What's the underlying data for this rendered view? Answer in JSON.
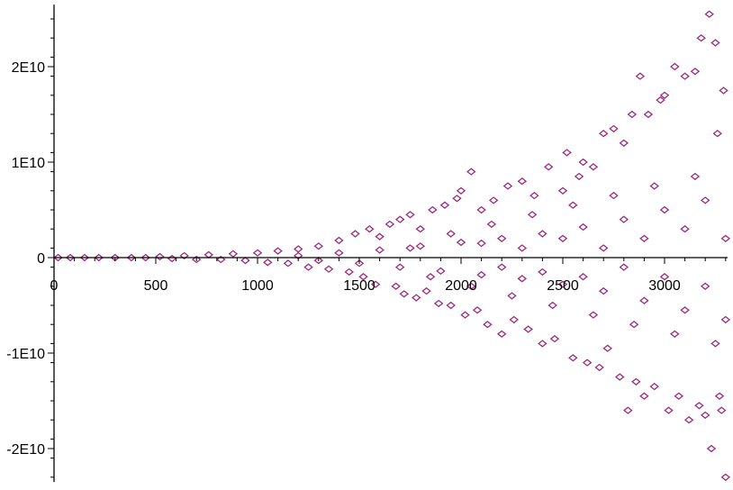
{
  "chart_data": {
    "type": "scatter",
    "title": "",
    "xlabel": "",
    "ylabel": "",
    "xlim": [
      0,
      3320
    ],
    "ylim": [
      -23500000000.0,
      26500000000.0
    ],
    "x_ticks": [
      0,
      500,
      1000,
      1500,
      2000,
      2500,
      3000
    ],
    "x_tick_labels": [
      "0",
      "500",
      "1000",
      "1500",
      "2000",
      "2500",
      "3000"
    ],
    "y_ticks": [
      -20000000000.0,
      -10000000000.0,
      0,
      10000000000.0,
      20000000000.0
    ],
    "y_tick_labels": [
      "-2E10",
      "-1E10",
      "0",
      "1E10",
      "2E10"
    ],
    "marker": "diamond",
    "marker_color": "#9b2d7a",
    "series": [
      {
        "values": [
          [
            20,
            0
          ],
          [
            80,
            0
          ],
          [
            150,
            0
          ],
          [
            220,
            0
          ],
          [
            300,
            0
          ],
          [
            380,
            0
          ],
          [
            450,
            0
          ],
          [
            520,
            100000000.0
          ],
          [
            580,
            -100000000.0
          ],
          [
            640,
            200000000.0
          ],
          [
            700,
            -200000000.0
          ],
          [
            760,
            300000000.0
          ],
          [
            820,
            -200000000.0
          ],
          [
            880,
            400000000.0
          ],
          [
            940,
            -300000000.0
          ],
          [
            1000,
            500000000.0
          ],
          [
            1050,
            -500000000.0
          ],
          [
            1100,
            700000000.0
          ],
          [
            1150,
            -600000000.0
          ],
          [
            1200,
            900000000.0
          ],
          [
            1250,
            -1000000000.0
          ],
          [
            1300,
            1200000000.0
          ],
          [
            1350,
            -1200000000.0
          ],
          [
            1400,
            1800000000.0
          ],
          [
            1450,
            -1500000000.0
          ],
          [
            1480,
            2500000000.0
          ],
          [
            1520,
            -2000000000.0
          ],
          [
            1550,
            3000000000.0
          ],
          [
            1580,
            -2800000000.0
          ],
          [
            1600,
            2200000000.0
          ],
          [
            1650,
            3500000000.0
          ],
          [
            1680,
            -3000000000.0
          ],
          [
            1700,
            4000000000.0
          ],
          [
            1720,
            -3800000000.0
          ],
          [
            1750,
            4500000000.0
          ],
          [
            1780,
            -4200000000.0
          ],
          [
            1800,
            3000000000.0
          ],
          [
            1830,
            -3500000000.0
          ],
          [
            1860,
            5000000000.0
          ],
          [
            1890,
            -4800000000.0
          ],
          [
            1920,
            5500000000.0
          ],
          [
            1950,
            -5000000000.0
          ],
          [
            1980,
            6200000000.0
          ],
          [
            2000,
            7000000000.0
          ],
          [
            2020,
            -6000000000.0
          ],
          [
            2050,
            9000000000.0
          ],
          [
            2080,
            -5500000000.0
          ],
          [
            2100,
            5000000000.0
          ],
          [
            2130,
            -7000000000.0
          ],
          [
            2160,
            6000000000.0
          ],
          [
            2200,
            -8000000000.0
          ],
          [
            2230,
            7500000000.0
          ],
          [
            2260,
            -6500000000.0
          ],
          [
            2300,
            8000000000.0
          ],
          [
            2330,
            -7500000000.0
          ],
          [
            2360,
            6500000000.0
          ],
          [
            2400,
            -9000000000.0
          ],
          [
            2430,
            9500000000.0
          ],
          [
            2460,
            -8500000000.0
          ],
          [
            2500,
            7000000000.0
          ],
          [
            2520,
            11000000000.0
          ],
          [
            2550,
            -10500000000.0
          ],
          [
            2580,
            8500000000.0
          ],
          [
            2600,
            10000000000.0
          ],
          [
            2620,
            -11000000000.0
          ],
          [
            2650,
            9500000000.0
          ],
          [
            2680,
            -11500000000.0
          ],
          [
            2700,
            13000000000.0
          ],
          [
            2720,
            -9500000000.0
          ],
          [
            2750,
            13500000000.0
          ],
          [
            2780,
            -12500000000.0
          ],
          [
            2800,
            12000000000.0
          ],
          [
            2820,
            -16000000000.0
          ],
          [
            2840,
            15000000000.0
          ],
          [
            2860,
            -13000000000.0
          ],
          [
            2880,
            19000000000.0
          ],
          [
            2900,
            -14500000000.0
          ],
          [
            2920,
            15000000000.0
          ],
          [
            2950,
            -13500000000.0
          ],
          [
            2980,
            16500000000.0
          ],
          [
            3000,
            17000000000.0
          ],
          [
            3020,
            -16000000000.0
          ],
          [
            3050,
            20000000000.0
          ],
          [
            3070,
            -14500000000.0
          ],
          [
            3100,
            19000000000.0
          ],
          [
            3120,
            -17000000000.0
          ],
          [
            3150,
            19500000000.0
          ],
          [
            3170,
            -15500000000.0
          ],
          [
            3180,
            23000000000.0
          ],
          [
            3200,
            -16500000000.0
          ],
          [
            3220,
            25500000000.0
          ],
          [
            3230,
            -20000000000.0
          ],
          [
            3250,
            22500000000.0
          ],
          [
            3260,
            13000000000.0
          ],
          [
            3270,
            -14500000000.0
          ],
          [
            3280,
            -16000000000.0
          ],
          [
            3290,
            17500000000.0
          ],
          [
            3300,
            -23000000000.0
          ],
          [
            1200,
            200000000.0
          ],
          [
            1300,
            -300000000.0
          ],
          [
            1400,
            500000000.0
          ],
          [
            1500,
            -600000000.0
          ],
          [
            1600,
            800000000.0
          ],
          [
            1700,
            -1000000000.0
          ],
          [
            1800,
            1200000000.0
          ],
          [
            1900,
            -1400000000.0
          ],
          [
            2000,
            1600000000.0
          ],
          [
            2100,
            -1800000000.0
          ],
          [
            2200,
            2000000000.0
          ],
          [
            2300,
            -2200000000.0
          ],
          [
            2400,
            2500000000.0
          ],
          [
            2500,
            -2800000000.0
          ],
          [
            2600,
            3200000000.0
          ],
          [
            2700,
            -3500000000.0
          ],
          [
            2800,
            4000000000.0
          ],
          [
            2900,
            -4500000000.0
          ],
          [
            3000,
            5000000000.0
          ],
          [
            3100,
            -5500000000.0
          ],
          [
            3200,
            6000000000.0
          ],
          [
            3300,
            -6500000000.0
          ],
          [
            1750,
            1000000000.0
          ],
          [
            1850,
            -2000000000.0
          ],
          [
            1950,
            2500000000.0
          ],
          [
            2050,
            -3000000000.0
          ],
          [
            2150,
            3500000000.0
          ],
          [
            2250,
            -4000000000.0
          ],
          [
            2350,
            4500000000.0
          ],
          [
            2450,
            -5000000000.0
          ],
          [
            2550,
            5500000000.0
          ],
          [
            2650,
            -6000000000.0
          ],
          [
            2750,
            6500000000.0
          ],
          [
            2850,
            -7000000000.0
          ],
          [
            2950,
            7500000000.0
          ],
          [
            3050,
            -8000000000.0
          ],
          [
            3150,
            8500000000.0
          ],
          [
            3250,
            -9000000000.0
          ],
          [
            2100,
            1500000000.0
          ],
          [
            2200,
            -1000000000.0
          ],
          [
            2300,
            1000000000.0
          ],
          [
            2400,
            -1500000000.0
          ],
          [
            2500,
            2000000000.0
          ],
          [
            2600,
            -2000000000.0
          ],
          [
            2700,
            1000000000.0
          ],
          [
            2800,
            -1000000000.0
          ],
          [
            2900,
            2000000000.0
          ],
          [
            3000,
            -2000000000.0
          ],
          [
            3100,
            3000000000.0
          ],
          [
            3200,
            -3000000000.0
          ],
          [
            3300,
            2000000000.0
          ]
        ]
      }
    ],
    "grid": false,
    "legend": null
  }
}
